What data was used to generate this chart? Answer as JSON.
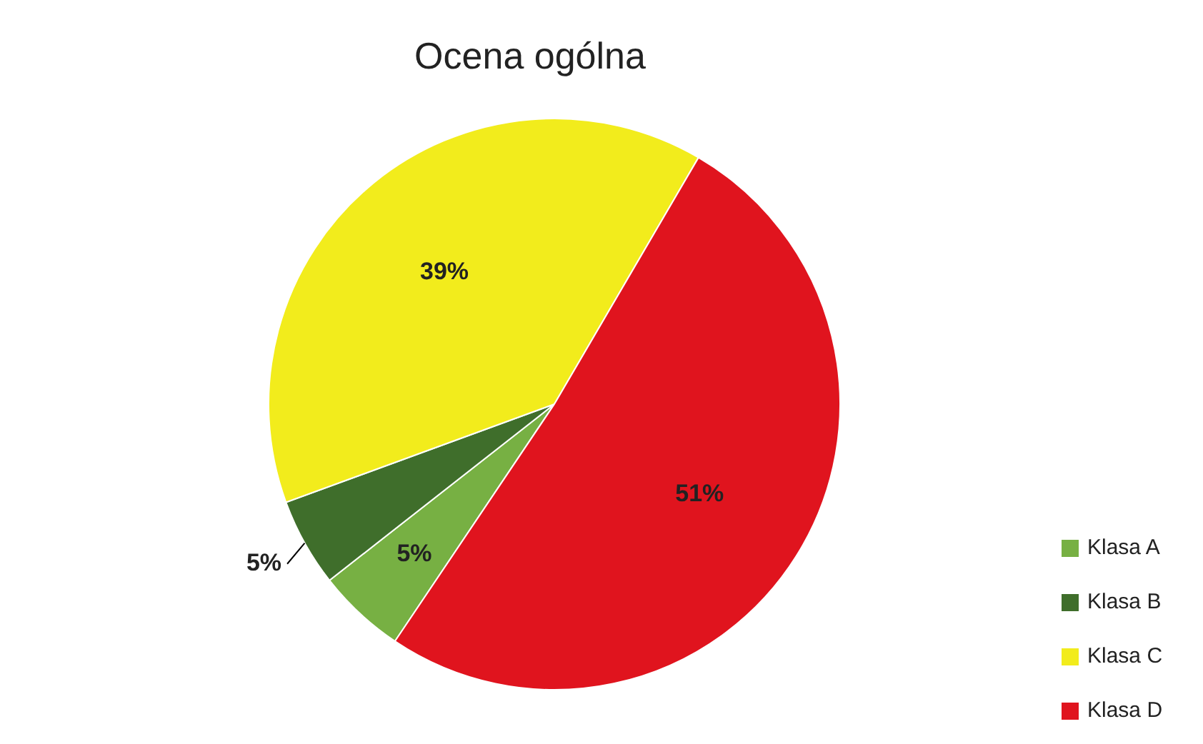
{
  "chart_data": {
    "type": "pie",
    "title": "Ocena ogólna",
    "categories": [
      "Klasa A",
      "Klasa B",
      "Klasa C",
      "Klasa D"
    ],
    "values": [
      5,
      5,
      39,
      51
    ],
    "value_labels": [
      "5%",
      "5%",
      "39%",
      "51%"
    ],
    "colors": [
      "#77b043",
      "#3f6e2b",
      "#f2ec1c",
      "#e0141e"
    ],
    "legend": "bottom right"
  }
}
